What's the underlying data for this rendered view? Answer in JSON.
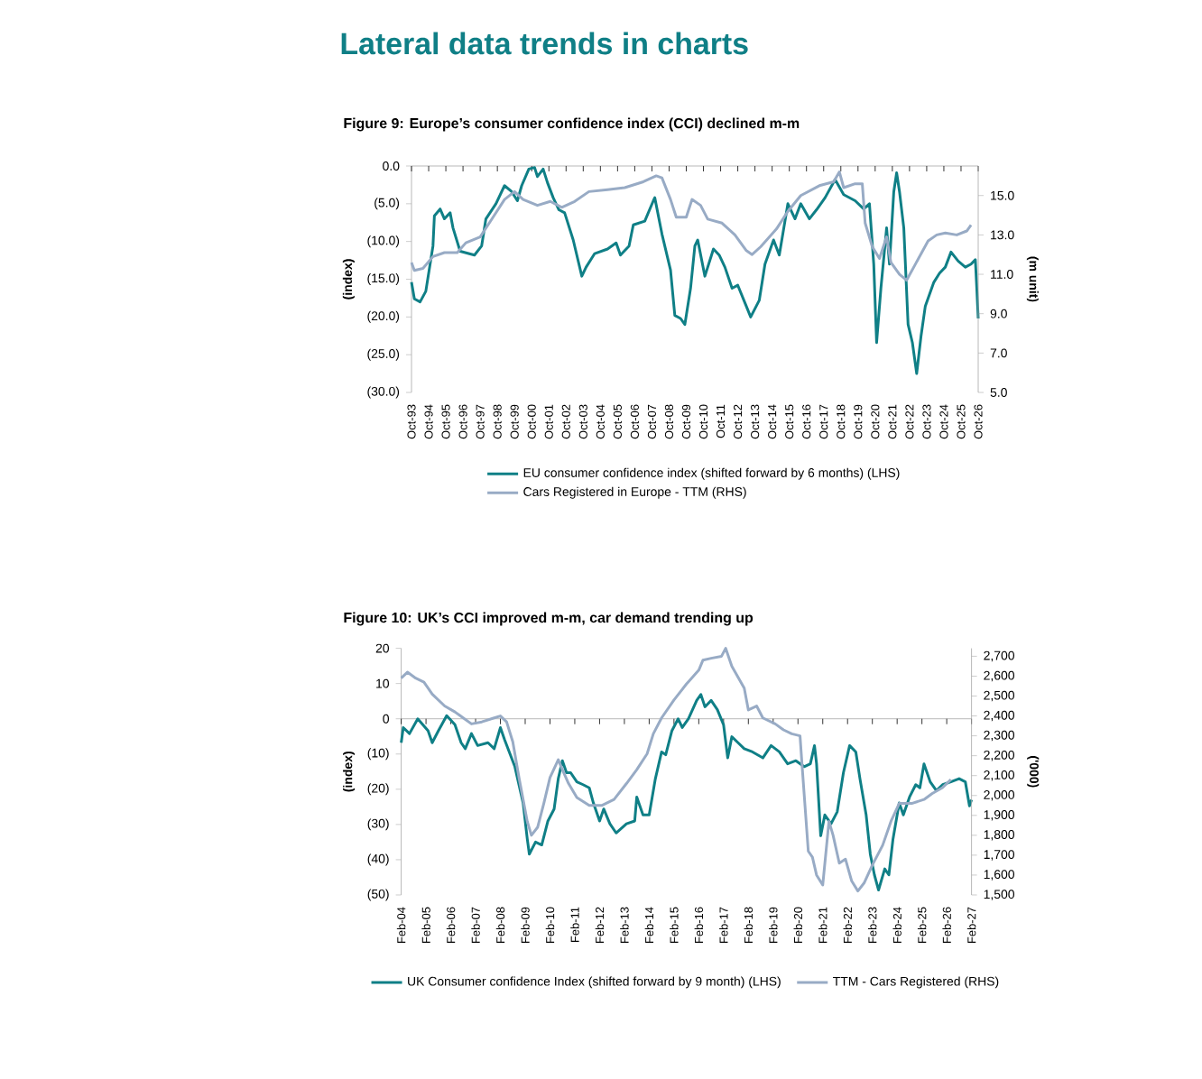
{
  "chart_data": [
    {
      "type": "line",
      "title": "Lateral data trends in charts",
      "subtitle": "Figure 9: Europe’s consumer confidence index (CCI) declined m-m",
      "ylabel": "(index)",
      "y2label": "(m unit)",
      "legend": "bottom",
      "xlim": [
        "1993-10",
        "2026-10"
      ],
      "ylim": [
        -30,
        0
      ],
      "y2lim": [
        5,
        16.5
      ],
      "xticks": [
        {
          "value": "1993-10",
          "label": "Oct-93"
        },
        {
          "value": "1994-10",
          "label": "Oct-94"
        },
        {
          "value": "1995-10",
          "label": "Oct-95"
        },
        {
          "value": "1996-10",
          "label": "Oct-96"
        },
        {
          "value": "1997-10",
          "label": "Oct-97"
        },
        {
          "value": "1998-10",
          "label": "Oct-98"
        },
        {
          "value": "1999-10",
          "label": "Oct-99"
        },
        {
          "value": "2000-10",
          "label": "Oct-00"
        },
        {
          "value": "2001-10",
          "label": "Oct-01"
        },
        {
          "value": "2002-10",
          "label": "Oct-02"
        },
        {
          "value": "2003-10",
          "label": "Oct-03"
        },
        {
          "value": "2004-10",
          "label": "Oct-04"
        },
        {
          "value": "2005-10",
          "label": "Oct-05"
        },
        {
          "value": "2006-10",
          "label": "Oct-06"
        },
        {
          "value": "2007-10",
          "label": "Oct-07"
        },
        {
          "value": "2008-10",
          "label": "Oct-08"
        },
        {
          "value": "2009-10",
          "label": "Oct-09"
        },
        {
          "value": "2010-10",
          "label": "Oct-10"
        },
        {
          "value": "2011-10",
          "label": "Oct-11"
        },
        {
          "value": "2012-10",
          "label": "Oct-12"
        },
        {
          "value": "2013-10",
          "label": "Oct-13"
        },
        {
          "value": "2014-10",
          "label": "Oct-14"
        },
        {
          "value": "2015-10",
          "label": "Oct-15"
        },
        {
          "value": "2016-10",
          "label": "Oct-16"
        },
        {
          "value": "2017-10",
          "label": "Oct-17"
        },
        {
          "value": "2018-10",
          "label": "Oct-18"
        },
        {
          "value": "2019-10",
          "label": "Oct-19"
        },
        {
          "value": "2020-10",
          "label": "Oct-20"
        },
        {
          "value": "2021-10",
          "label": "Oct-21"
        },
        {
          "value": "2022-10",
          "label": "Oct-22"
        },
        {
          "value": "2023-10",
          "label": "Oct-23"
        },
        {
          "value": "2024-10",
          "label": "Oct-24"
        },
        {
          "value": "2025-10",
          "label": "Oct-25"
        },
        {
          "value": "2026-10",
          "label": "Oct-26"
        }
      ],
      "yticks": [
        {
          "value": 0,
          "label": "0.0"
        },
        {
          "value": -5,
          "label": "(5.0)"
        },
        {
          "value": -10,
          "label": "(10.0)"
        },
        {
          "value": -15,
          "label": "(15.0)"
        },
        {
          "value": -20,
          "label": "(20.0)"
        },
        {
          "value": -25,
          "label": "(25.0)"
        },
        {
          "value": -30,
          "label": "(30.0)"
        }
      ],
      "y2ticks": [
        {
          "value": 5,
          "label": "5.0"
        },
        {
          "value": 7,
          "label": "7.0"
        },
        {
          "value": 9,
          "label": "9.0"
        },
        {
          "value": 11,
          "label": "11.0"
        },
        {
          "value": 13,
          "label": "13.0"
        },
        {
          "value": 15,
          "label": "15.0"
        }
      ],
      "ref_lines": [
        {
          "axis": "y",
          "value": 0
        }
      ],
      "series": [
        {
          "name": "EU consumer confidence index (shifted forward by 6 months) (LHS)",
          "color": "#0f7f86",
          "x": [
            "1993-10",
            "1993-12",
            "1994-04",
            "1994-08",
            "1995-01",
            "1995-02",
            "1995-06",
            "1995-09",
            "1996-01",
            "1996-03",
            "1996-08",
            "1997-02",
            "1997-06",
            "1997-11",
            "1998-02",
            "1998-09",
            "1999-03",
            "1999-08",
            "1999-12",
            "2000-03",
            "2000-08",
            "2000-12",
            "2001-02",
            "2001-06",
            "2001-09",
            "2002-01",
            "2002-05",
            "2002-09",
            "2003-03",
            "2003-09",
            "2003-12",
            "2004-06",
            "2005-03",
            "2005-09",
            "2005-12",
            "2006-06",
            "2006-09",
            "2007-05",
            "2007-11",
            "2007-12",
            "2008-05",
            "2008-11",
            "2009-02",
            "2009-06",
            "2009-09",
            "2010-01",
            "2010-04",
            "2010-06",
            "2010-11",
            "2011-05",
            "2011-09",
            "2012-01",
            "2012-06",
            "2012-10",
            "2013-04",
            "2013-07",
            "2014-01",
            "2014-05",
            "2014-11",
            "2015-03",
            "2015-09",
            "2016-02",
            "2016-06",
            "2016-12",
            "2017-05",
            "2017-11",
            "2018-06",
            "2018-12",
            "2019-08",
            "2020-02",
            "2020-06",
            "2020-09",
            "2020-11",
            "2021-02",
            "2021-06",
            "2021-08",
            "2021-11",
            "2022-01",
            "2022-03",
            "2022-06",
            "2022-09",
            "2022-12",
            "2023-03",
            "2023-06",
            "2023-09",
            "2024-03",
            "2024-07",
            "2024-11",
            "2025-03",
            "2025-08",
            "2026-01",
            "2026-05",
            "2026-08",
            "2026-09",
            "2026-10"
          ],
          "values": [
            -15.4,
            -17.6,
            -18.0,
            -16.6,
            -10.6,
            -6.6,
            -5.7,
            -7.0,
            -6.2,
            -8.2,
            -11.3,
            -11.6,
            -11.8,
            -10.6,
            -7.0,
            -5.0,
            -2.6,
            -3.4,
            -4.6,
            -2.6,
            -0.4,
            -0.2,
            -1.4,
            -0.4,
            -2.2,
            -4.2,
            -5.8,
            -6.2,
            -9.8,
            -14.6,
            -13.4,
            -11.6,
            -11.0,
            -10.2,
            -11.8,
            -10.6,
            -7.8,
            -7.3,
            -4.6,
            -4.2,
            -9.0,
            -13.8,
            -19.8,
            -20.2,
            -21.0,
            -16.2,
            -10.6,
            -9.8,
            -14.6,
            -11.0,
            -11.8,
            -13.4,
            -16.2,
            -15.8,
            -18.6,
            -20.0,
            -17.8,
            -13.0,
            -9.8,
            -11.8,
            -5.0,
            -7.0,
            -5.0,
            -7.0,
            -5.8,
            -4.2,
            -1.8,
            -3.8,
            -4.6,
            -5.7,
            -5.0,
            -13.0,
            -23.4,
            -16.2,
            -8.2,
            -13.0,
            -3.4,
            -0.9,
            -3.4,
            -8.2,
            -21.0,
            -23.4,
            -27.5,
            -22.6,
            -18.6,
            -15.4,
            -14.2,
            -13.4,
            -11.4,
            -12.6,
            -13.4,
            -13.0,
            -12.4,
            -16.2,
            -20.2
          ]
        },
        {
          "name": "Cars Registered in Europe - TTM (RHS)",
          "color": "#98abc5",
          "axis": "y2",
          "x": [
            "1993-10",
            "1993-12",
            "1994-06",
            "1995-01",
            "1995-09",
            "1996-06",
            "1996-12",
            "1997-10",
            "1998-07",
            "1999-03",
            "1999-10",
            "2000-04",
            "2001-02",
            "2001-11",
            "2002-07",
            "2003-04",
            "2004-02",
            "2005-03",
            "2006-03",
            "2007-04",
            "2008-01",
            "2008-05",
            "2008-11",
            "2009-03",
            "2009-10",
            "2010-02",
            "2010-08",
            "2011-01",
            "2011-11",
            "2012-08",
            "2013-04",
            "2013-08",
            "2014-02",
            "2015-01",
            "2015-09",
            "2016-06",
            "2017-07",
            "2018-05",
            "2018-09",
            "2018-12",
            "2019-08",
            "2020-01",
            "2020-03",
            "2020-08",
            "2021-01",
            "2021-06",
            "2021-09",
            "2022-03",
            "2022-08",
            "2023-02",
            "2023-11",
            "2024-05",
            "2024-11",
            "2025-07",
            "2026-02",
            "2026-05"
          ],
          "values": [
            11.6,
            11.2,
            11.3,
            11.9,
            12.1,
            12.1,
            12.6,
            12.9,
            13.9,
            14.8,
            15.2,
            14.8,
            14.5,
            14.7,
            14.4,
            14.7,
            15.2,
            15.3,
            15.4,
            15.7,
            16.0,
            15.9,
            14.8,
            13.9,
            13.9,
            14.8,
            14.5,
            13.8,
            13.6,
            13.0,
            12.2,
            12.0,
            12.4,
            13.3,
            14.2,
            15.0,
            15.5,
            15.7,
            16.2,
            15.4,
            15.6,
            15.6,
            13.6,
            12.4,
            11.8,
            12.9,
            11.6,
            11.0,
            10.7,
            11.5,
            12.7,
            13.0,
            13.1,
            13.0,
            13.2,
            13.5
          ]
        }
      ]
    },
    {
      "type": "line",
      "title": "Figure 10: UK’s CCI improved m-m, car demand trending up",
      "ylabel": "(index)",
      "y2label": "('000)",
      "legend": "bottom",
      "xlim": [
        "2004-02",
        "2027-02"
      ],
      "ylim": [
        -50,
        20
      ],
      "y2lim": [
        1500,
        2740
      ],
      "xticks": [
        {
          "value": "2004-02",
          "label": "Feb-04"
        },
        {
          "value": "2005-02",
          "label": "Feb-05"
        },
        {
          "value": "2006-02",
          "label": "Feb-06"
        },
        {
          "value": "2007-02",
          "label": "Feb-07"
        },
        {
          "value": "2008-02",
          "label": "Feb-08"
        },
        {
          "value": "2009-02",
          "label": "Feb-09"
        },
        {
          "value": "2010-02",
          "label": "Feb-10"
        },
        {
          "value": "2011-02",
          "label": "Feb-11"
        },
        {
          "value": "2012-02",
          "label": "Feb-12"
        },
        {
          "value": "2013-02",
          "label": "Feb-13"
        },
        {
          "value": "2014-02",
          "label": "Feb-14"
        },
        {
          "value": "2015-02",
          "label": "Feb-15"
        },
        {
          "value": "2016-02",
          "label": "Feb-16"
        },
        {
          "value": "2017-02",
          "label": "Feb-17"
        },
        {
          "value": "2018-02",
          "label": "Feb-18"
        },
        {
          "value": "2019-02",
          "label": "Feb-19"
        },
        {
          "value": "2020-02",
          "label": "Feb-20"
        },
        {
          "value": "2021-02",
          "label": "Feb-21"
        },
        {
          "value": "2022-02",
          "label": "Feb-22"
        },
        {
          "value": "2023-02",
          "label": "Feb-23"
        },
        {
          "value": "2024-02",
          "label": "Feb-24"
        },
        {
          "value": "2025-02",
          "label": "Feb-25"
        },
        {
          "value": "2026-02",
          "label": "Feb-26"
        },
        {
          "value": "2027-02",
          "label": "Feb-27"
        }
      ],
      "yticks": [
        20,
        10,
        0,
        {
          "value": -10,
          "label": "(10)"
        },
        {
          "value": -20,
          "label": "(20)"
        },
        {
          "value": -30,
          "label": "(30)"
        },
        {
          "value": -40,
          "label": "(40)"
        },
        {
          "value": -50,
          "label": "(50)"
        }
      ],
      "y2ticks": [
        {
          "value": 1500,
          "label": "1,500"
        },
        {
          "value": 1600,
          "label": "1,600"
        },
        {
          "value": 1700,
          "label": "1,700"
        },
        {
          "value": 1800,
          "label": "1,800"
        },
        {
          "value": 1900,
          "label": "1,900"
        },
        {
          "value": 2000,
          "label": "2,000"
        },
        {
          "value": 2100,
          "label": "2,100"
        },
        {
          "value": 2200,
          "label": "2,200"
        },
        {
          "value": 2300,
          "label": "2,300"
        },
        {
          "value": 2400,
          "label": "2,400"
        },
        {
          "value": 2500,
          "label": "2,500"
        },
        {
          "value": 2600,
          "label": "2,600"
        },
        {
          "value": 2700,
          "label": "2,700"
        }
      ],
      "ref_lines": [
        {
          "axis": "y",
          "value": 0
        }
      ],
      "series": [
        {
          "name": "UK Consumer confidence Index (shifted forward by 9 month) (LHS)",
          "color": "#0f7f86",
          "x": [
            "2004-02",
            "2004-03",
            "2004-06",
            "2004-10",
            "2005-03",
            "2005-05",
            "2005-08",
            "2005-12",
            "2006-04",
            "2006-07",
            "2006-09",
            "2006-12",
            "2007-03",
            "2007-08",
            "2007-11",
            "2008-02",
            "2008-04",
            "2008-09",
            "2009-01",
            "2009-03",
            "2009-04",
            "2009-07",
            "2009-10",
            "2010-01",
            "2010-04",
            "2010-06",
            "2010-08",
            "2010-10",
            "2010-12",
            "2011-03",
            "2011-06",
            "2011-09",
            "2011-11",
            "2012-02",
            "2012-04",
            "2012-07",
            "2012-10",
            "2013-03",
            "2013-07",
            "2013-08",
            "2013-11",
            "2014-02",
            "2014-05",
            "2014-08",
            "2014-10",
            "2015-01",
            "2015-04",
            "2015-06",
            "2015-09",
            "2016-01",
            "2016-03",
            "2016-05",
            "2016-08",
            "2016-11",
            "2017-02",
            "2017-04",
            "2017-06",
            "2017-09",
            "2017-12",
            "2018-04",
            "2018-09",
            "2019-01",
            "2019-05",
            "2019-09",
            "2020-01",
            "2020-05",
            "2020-08",
            "2020-10",
            "2020-11",
            "2021-01",
            "2021-03",
            "2021-06",
            "2021-09",
            "2021-12",
            "2022-03",
            "2022-06",
            "2022-08",
            "2022-11",
            "2023-01",
            "2023-03",
            "2023-05",
            "2023-08",
            "2023-10",
            "2023-12",
            "2024-03",
            "2024-05",
            "2024-08",
            "2024-11",
            "2025-01",
            "2025-03",
            "2025-06",
            "2025-09",
            "2025-12",
            "2026-04",
            "2026-08",
            "2026-11",
            "2027-01",
            "2027-02"
          ],
          "values": [
            -6.8,
            -2.5,
            -4.2,
            0.0,
            -3.4,
            -6.8,
            -3.4,
            0.9,
            -1.7,
            -6.8,
            -8.5,
            -4.2,
            -7.6,
            -6.8,
            -8.5,
            -2.5,
            -5.9,
            -13.6,
            -23.9,
            -34.1,
            -38.4,
            -35.0,
            -35.8,
            -29.0,
            -25.6,
            -17.0,
            -11.9,
            -15.3,
            -15.3,
            -17.9,
            -18.7,
            -19.6,
            -23.9,
            -29.0,
            -25.6,
            -29.8,
            -32.4,
            -29.8,
            -29.0,
            -22.2,
            -27.3,
            -27.3,
            -17.0,
            -9.4,
            -10.2,
            -3.4,
            0.0,
            -2.5,
            0.0,
            5.2,
            6.9,
            3.4,
            5.2,
            2.6,
            -1.7,
            -11.1,
            -5.1,
            -6.8,
            -8.5,
            -9.4,
            -11.1,
            -7.6,
            -9.4,
            -12.8,
            -11.9,
            -13.6,
            -12.8,
            -7.6,
            -12.8,
            -33.2,
            -27.3,
            -29.8,
            -26.4,
            -15.3,
            -7.6,
            -9.4,
            -17.0,
            -27.3,
            -38.4,
            -44.3,
            -48.6,
            -42.6,
            -44.3,
            -34.1,
            -23.9,
            -27.3,
            -22.2,
            -18.7,
            -19.6,
            -12.8,
            -17.9,
            -20.4,
            -18.7,
            -17.9,
            -17.0,
            -17.9,
            -24.7,
            -23.0
          ]
        },
        {
          "name": "TTM - Cars Registered (RHS)",
          "color": "#98abc5",
          "axis": "y2",
          "x": [
            "2004-02",
            "2004-05",
            "2004-09",
            "2005-01",
            "2005-05",
            "2005-11",
            "2006-04",
            "2006-08",
            "2006-12",
            "2007-05",
            "2007-11",
            "2008-02",
            "2008-05",
            "2008-08",
            "2008-11",
            "2009-03",
            "2009-05",
            "2009-08",
            "2009-11",
            "2010-02",
            "2010-06",
            "2010-08",
            "2010-11",
            "2011-03",
            "2011-09",
            "2012-03",
            "2012-09",
            "2013-03",
            "2013-08",
            "2014-01",
            "2014-04",
            "2014-08",
            "2015-02",
            "2015-08",
            "2016-02",
            "2016-04",
            "2016-08",
            "2017-01",
            "2017-03",
            "2017-06",
            "2017-12",
            "2018-02",
            "2018-06",
            "2018-09",
            "2019-03",
            "2019-07",
            "2019-11",
            "2020-03",
            "2020-04",
            "2020-07",
            "2020-09",
            "2020-11",
            "2021-02",
            "2021-05",
            "2021-07",
            "2021-10",
            "2022-01",
            "2022-04",
            "2022-07",
            "2022-10",
            "2023-02",
            "2023-07",
            "2023-11",
            "2024-03",
            "2024-09",
            "2025-03",
            "2025-07",
            "2025-12",
            "2026-04"
          ],
          "values": [
            2590,
            2620,
            2590,
            2570,
            2510,
            2450,
            2420,
            2390,
            2360,
            2370,
            2390,
            2400,
            2370,
            2270,
            2090,
            1870,
            1800,
            1840,
            1960,
            2090,
            2180,
            2130,
            2060,
            1990,
            1950,
            1950,
            1980,
            2060,
            2130,
            2210,
            2310,
            2390,
            2480,
            2560,
            2630,
            2680,
            2690,
            2700,
            2740,
            2650,
            2540,
            2430,
            2450,
            2390,
            2360,
            2330,
            2310,
            2300,
            2150,
            1720,
            1690,
            1600,
            1550,
            1870,
            1800,
            1660,
            1680,
            1570,
            1520,
            1560,
            1650,
            1750,
            1870,
            1960,
            1960,
            1980,
            2010,
            2040,
            2080
          ]
        }
      ]
    }
  ]
}
